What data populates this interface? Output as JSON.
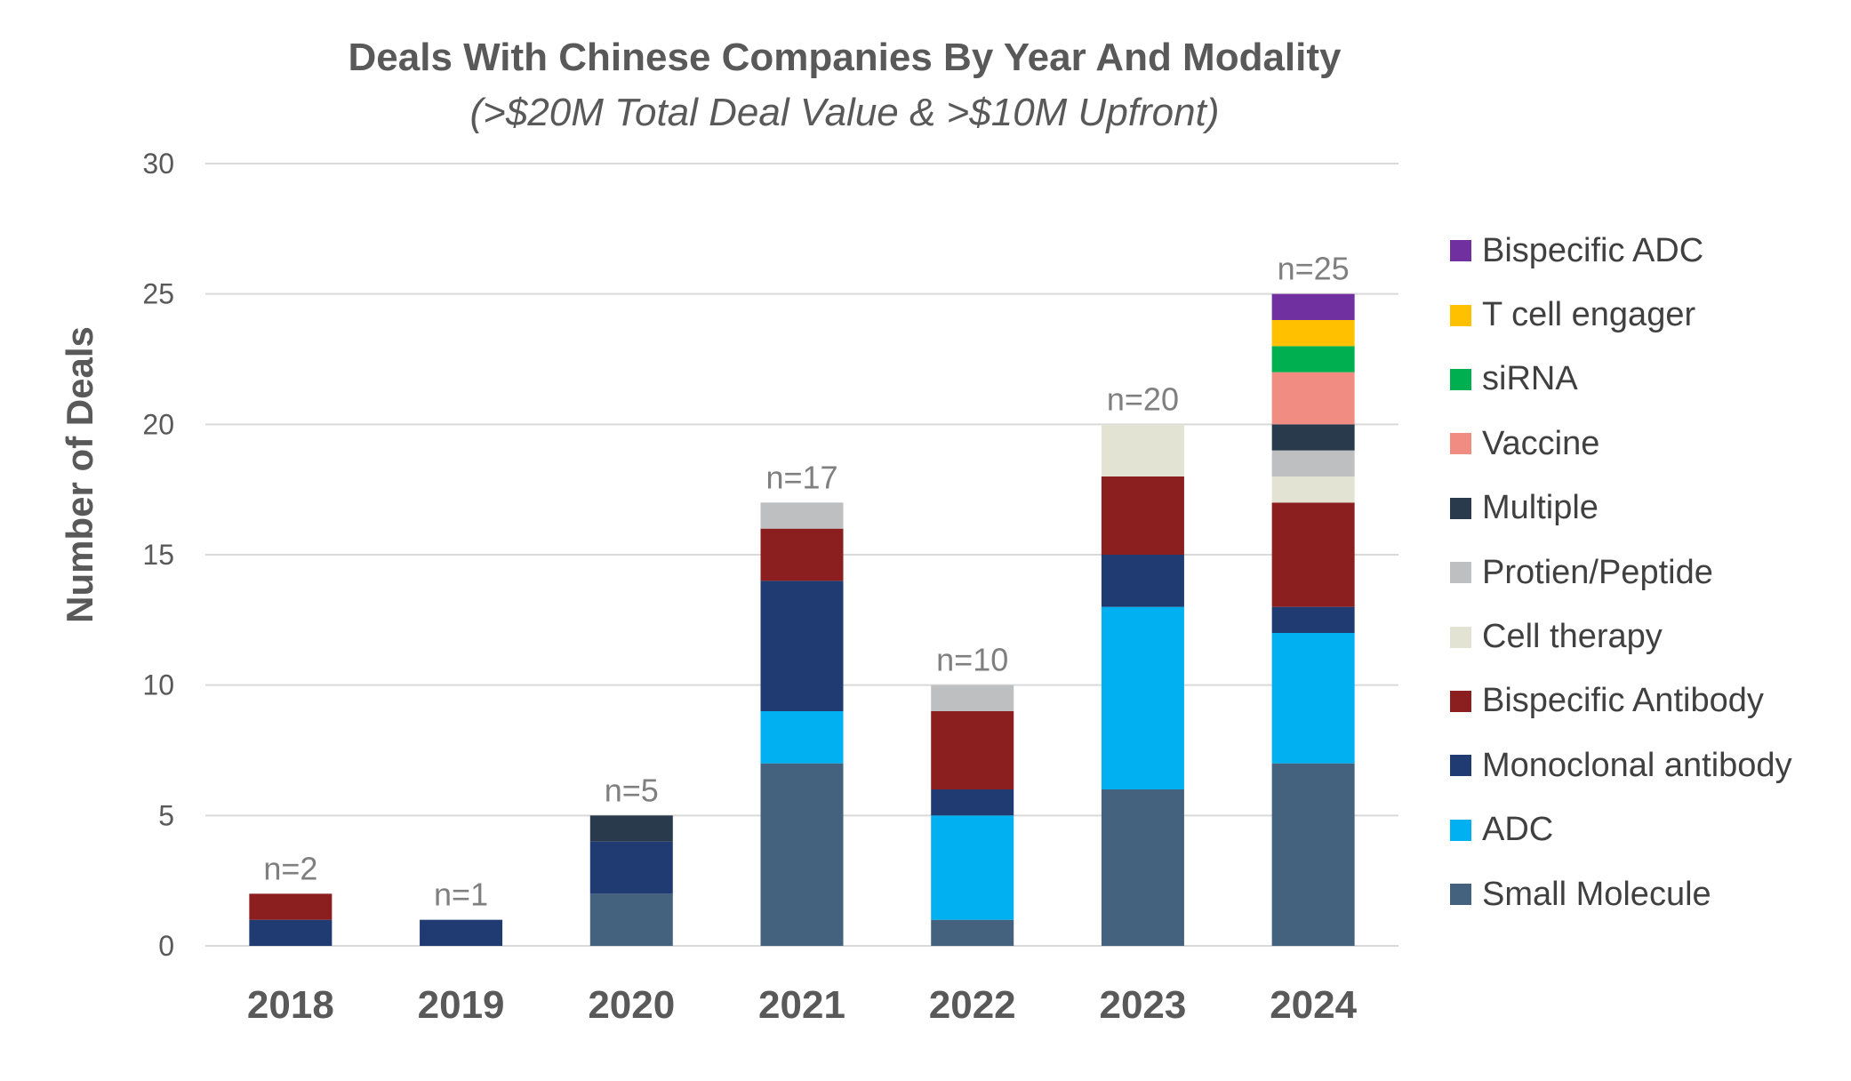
{
  "chart_data": {
    "type": "bar",
    "stacked": true,
    "title": "Deals With Chinese Companies By Year And Modality",
    "subtitle": "(>$20M Total Deal Value & >$10M Upfront)",
    "xlabel": "",
    "ylabel": "Number of Deals",
    "ylim": [
      0,
      30
    ],
    "yticks": [
      0,
      5,
      10,
      15,
      20,
      25,
      30
    ],
    "grid": true,
    "legend_position": "right",
    "categories": [
      "2018",
      "2019",
      "2020",
      "2021",
      "2022",
      "2023",
      "2024"
    ],
    "totals_labels": [
      "n=2",
      "n=1",
      "n=5",
      "n=17",
      "n=10",
      "n=20",
      "n=25"
    ],
    "series": [
      {
        "name": "Small Molecule",
        "color": "#44627D",
        "values": [
          0,
          0,
          2,
          7,
          1,
          6,
          7
        ]
      },
      {
        "name": "ADC",
        "color": "#00B0F0",
        "values": [
          0,
          0,
          0,
          2,
          4,
          7,
          5
        ]
      },
      {
        "name": "Monoclonal antibody",
        "color": "#203A72",
        "values": [
          1,
          1,
          2,
          5,
          1,
          2,
          1
        ]
      },
      {
        "name": "Bispecific Antibody",
        "color": "#8B1F1F",
        "values": [
          1,
          0,
          0,
          2,
          3,
          3,
          4
        ]
      },
      {
        "name": "Cell therapy",
        "color": "#E2E3D2",
        "values": [
          0,
          0,
          0,
          0,
          0,
          2,
          1
        ]
      },
      {
        "name": "Protien/Peptide",
        "color": "#BDBFC1",
        "values": [
          0,
          0,
          0,
          1,
          1,
          0,
          1
        ]
      },
      {
        "name": "Multiple",
        "color": "#283A4B",
        "values": [
          0,
          0,
          1,
          0,
          0,
          0,
          1
        ]
      },
      {
        "name": "Vaccine",
        "color": "#F08C82",
        "values": [
          0,
          0,
          0,
          0,
          0,
          0,
          2
        ]
      },
      {
        "name": "siRNA",
        "color": "#00B050",
        "values": [
          0,
          0,
          0,
          0,
          0,
          0,
          1
        ]
      },
      {
        "name": "T cell engager",
        "color": "#FFC000",
        "values": [
          0,
          0,
          0,
          0,
          0,
          0,
          1
        ]
      },
      {
        "name": "Bispecific ADC",
        "color": "#7030A0",
        "values": [
          0,
          0,
          0,
          0,
          0,
          0,
          1
        ]
      }
    ]
  }
}
